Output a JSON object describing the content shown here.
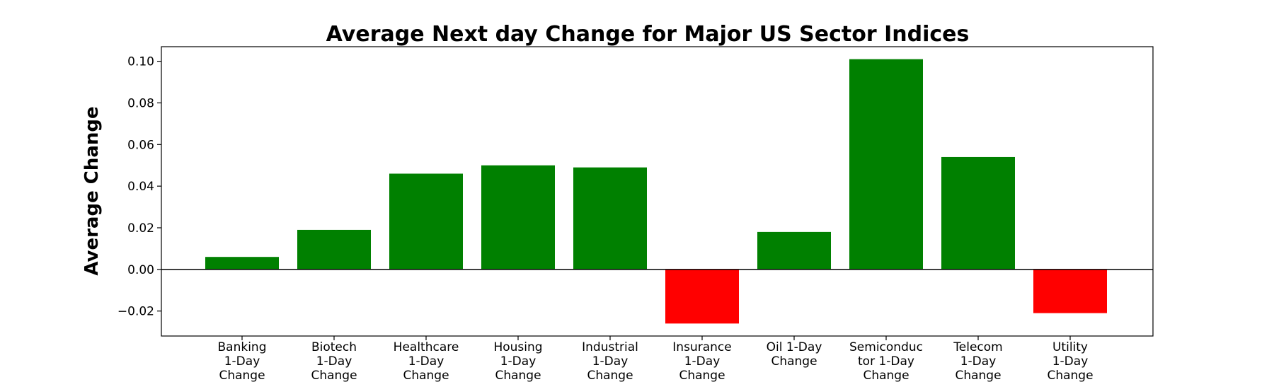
{
  "chart_data": {
    "type": "bar",
    "title": "Average Next day Change for Major US Sector Indices",
    "xlabel": "",
    "ylabel": "Average Change",
    "ylim": [
      -0.032,
      0.107
    ],
    "yticks": [
      -0.02,
      0.0,
      0.02,
      0.04,
      0.06,
      0.08,
      0.1
    ],
    "ytick_labels": [
      "−0.02",
      "0.00",
      "0.02",
      "0.04",
      "0.06",
      "0.08",
      "0.10"
    ],
    "categories": [
      [
        "Banking",
        "1-Day",
        "Change"
      ],
      [
        "Biotech",
        "1-Day",
        "Change"
      ],
      [
        "Healthcare",
        "1-Day",
        "Change"
      ],
      [
        "Housing",
        "1-Day",
        "Change"
      ],
      [
        "Industrial",
        "1-Day",
        "Change"
      ],
      [
        "Insurance",
        "1-Day",
        "Change"
      ],
      [
        "Oil 1-Day",
        "Change"
      ],
      [
        "Semiconduc",
        "tor 1-Day",
        "Change"
      ],
      [
        "Telecom",
        "1-Day",
        "Change"
      ],
      [
        "Utility",
        "1-Day",
        "Change"
      ]
    ],
    "values": [
      0.006,
      0.019,
      0.046,
      0.05,
      0.049,
      -0.026,
      0.018,
      0.101,
      0.054,
      -0.021
    ],
    "grid": false,
    "colors": {
      "positive": "#008000",
      "negative": "#ff0000",
      "axis": "#000000",
      "zero_line": "#000000"
    }
  }
}
